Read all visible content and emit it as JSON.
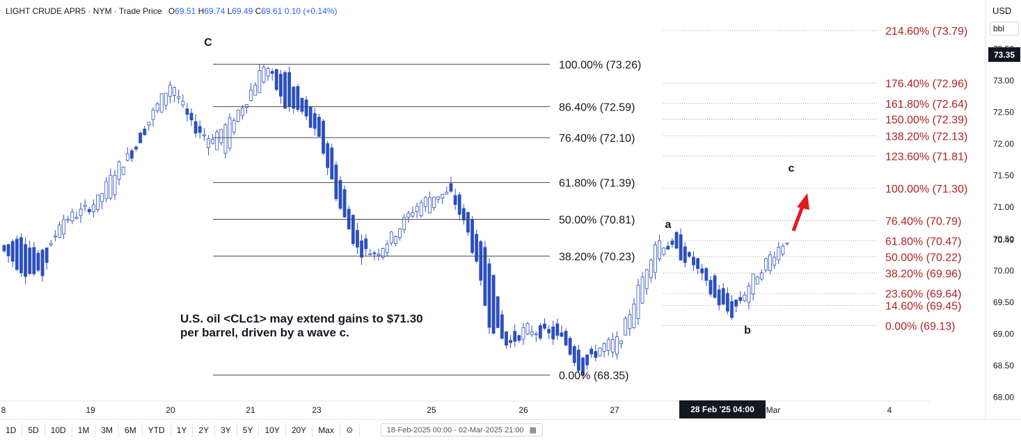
{
  "header": {
    "symbol": "LIGHT CRUDE APR5 · NYM · Trade Price",
    "o_label": "O",
    "o_value": "69.51",
    "h_label": "H",
    "h_value": "69.74",
    "l_label": "L",
    "l_value": "69.49",
    "c_label": "C",
    "c_value": "69.61",
    "change": "0.10 (+0.14%)"
  },
  "currency": "USD",
  "unit": "bbl",
  "last_price": "73.35",
  "crosshair_label": "28 Feb '25   04:00",
  "annotation": "U.S. oil <CLc1> may extend gains to $71.30 per barrel, driven by a wave c.",
  "toolbar": {
    "timeframes": [
      "1D",
      "5D",
      "10D",
      "1M",
      "3M",
      "6M",
      "YTD",
      "1Y",
      "2Y",
      "3Y",
      "5Y",
      "10Y",
      "20Y",
      "Max"
    ],
    "date_range": "18-Feb-2025 00:00 - 02-Mar-2025 21:00"
  },
  "colors": {
    "up_candle": "#ffffff",
    "down_candle": "#2a4fbf",
    "candle_outline": "#2a4fbf",
    "fib_left": "#131722",
    "fib_right": "#b22222",
    "arrow": "#e01a1a"
  },
  "chart_data": {
    "type": "candlestick",
    "price_axis": {
      "min": 68.0,
      "max": 73.5,
      "ticks": [
        "68.00",
        "68.50",
        "69.00",
        "69.50",
        "70.00",
        "70.50",
        "71.00",
        "71.50",
        "72.00",
        "72.50",
        "73.00",
        "73.50"
      ]
    },
    "current_price_label": "70.49",
    "x_ticks": [
      {
        "label": "8",
        "x": 5
      },
      {
        "label": "19",
        "x": 130
      },
      {
        "label": "20",
        "x": 245
      },
      {
        "label": "21",
        "x": 360
      },
      {
        "label": "23",
        "x": 455
      },
      {
        "label": "25",
        "x": 620
      },
      {
        "label": "26",
        "x": 752
      },
      {
        "label": "27",
        "x": 883
      },
      {
        "label": "Mar",
        "x": 1111
      },
      {
        "label": "4",
        "x": 1278
      }
    ],
    "fib_retracement_left": [
      {
        "label": "100.00% (73.26)",
        "price": 73.26
      },
      {
        "label": "86.40% (72.59)",
        "price": 72.59
      },
      {
        "label": "76.40% (72.10)",
        "price": 72.1
      },
      {
        "label": "61.80% (71.39)",
        "price": 71.39
      },
      {
        "label": "50.00% (70.81)",
        "price": 70.81
      },
      {
        "label": "38.20% (70.23)",
        "price": 70.23
      },
      {
        "label": "0.00% (68.35)",
        "price": 68.35
      }
    ],
    "fib_extension_right": [
      {
        "label": "214.60% (73.79)",
        "price": 73.79
      },
      {
        "label": "176.40% (72.96)",
        "price": 72.96
      },
      {
        "label": "161.80% (72.64)",
        "price": 72.64
      },
      {
        "label": "150.00% (72.39)",
        "price": 72.39
      },
      {
        "label": "138.20% (72.13)",
        "price": 72.13
      },
      {
        "label": "123.60% (71.81)",
        "price": 71.81
      },
      {
        "label": "100.00% (71.30)",
        "price": 71.3
      },
      {
        "label": "76.40% (70.79)",
        "price": 70.79
      },
      {
        "label": "61.80% (70.47)",
        "price": 70.47
      },
      {
        "label": "50.00% (70.22)",
        "price": 70.22
      },
      {
        "label": "38.20% (69.96)",
        "price": 69.96
      },
      {
        "label": "23.60% (69.64)",
        "price": 69.64
      },
      {
        "label": "14.60% (69.45)",
        "price": 69.45
      },
      {
        "label": "0.00% (69.13)",
        "price": 69.13
      }
    ],
    "wave_labels": [
      {
        "label": "C",
        "price": 73.45
      },
      {
        "label": "a",
        "price": 70.65
      },
      {
        "label": "b",
        "price": 68.95
      },
      {
        "label": "c",
        "price": 71.45
      }
    ],
    "path_points": [
      [
        70.4,
        70.3
      ],
      [
        70.5,
        70.0
      ],
      [
        70.3,
        69.9
      ],
      [
        70.6,
        70.8
      ],
      [
        70.9,
        70.9
      ],
      [
        71.0,
        71.1
      ],
      [
        71.3,
        71.6
      ],
      [
        72.0,
        71.9
      ],
      [
        72.4,
        72.5
      ],
      [
        72.8,
        73.0
      ],
      [
        72.5,
        72.3
      ],
      [
        72.0,
        72.1
      ],
      [
        71.9,
        72.3
      ],
      [
        72.6,
        72.7
      ],
      [
        73.0,
        73.3
      ],
      [
        73.2,
        72.6
      ],
      [
        72.7,
        72.5
      ],
      [
        72.4,
        72.0
      ],
      [
        71.5,
        71.0
      ],
      [
        70.6,
        70.3
      ],
      [
        70.2,
        70.3
      ],
      [
        70.5,
        70.6
      ],
      [
        70.9,
        71.0
      ],
      [
        71.0,
        71.2
      ],
      [
        71.3,
        71.2
      ],
      [
        70.9,
        70.5
      ],
      [
        70.2,
        69.2
      ],
      [
        69.0,
        68.8
      ],
      [
        68.9,
        69.1
      ],
      [
        69.1,
        69.0
      ],
      [
        69.1,
        68.9
      ],
      [
        68.7,
        68.4
      ],
      [
        68.7,
        68.8
      ],
      [
        68.7,
        68.9
      ],
      [
        69.3,
        69.7
      ],
      [
        70.1,
        70.5
      ],
      [
        70.6,
        70.3
      ],
      [
        70.2,
        70.1
      ],
      [
        69.9,
        69.6
      ],
      [
        69.5,
        69.3
      ],
      [
        69.5,
        69.8
      ],
      [
        70.0,
        70.2
      ],
      [
        70.4,
        70.5
      ]
    ]
  }
}
